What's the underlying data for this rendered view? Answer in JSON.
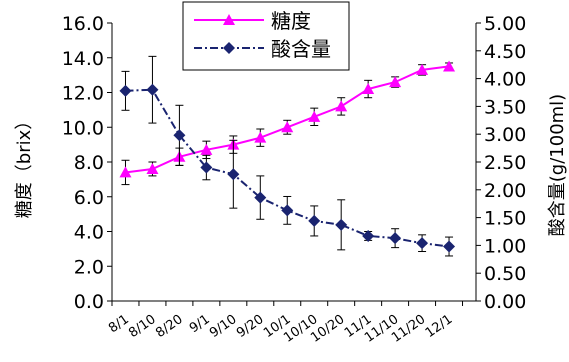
{
  "chart_data": {
    "type": "line",
    "categories": [
      "8/1",
      "8/10",
      "8/20",
      "9/1",
      "9/10",
      "9/20",
      "10/1",
      "10/10",
      "10/20",
      "11/1",
      "11/10",
      "11/20",
      "12/1"
    ],
    "y_left": {
      "label": "糖度（brix）",
      "range": [
        0,
        16
      ],
      "ticks": [
        "0.0",
        "2.0",
        "4.0",
        "6.0",
        "8.0",
        "10.0",
        "12.0",
        "14.0",
        "16.0"
      ]
    },
    "y_right": {
      "label": "酸含量(g/100ml)",
      "range": [
        0,
        5
      ],
      "ticks": [
        "0.00",
        "0.50",
        "1.00",
        "1.50",
        "2.00",
        "2.50",
        "3.00",
        "3.50",
        "4.00",
        "4.50",
        "5.00"
      ]
    },
    "legend_position": "top-center",
    "grid": false,
    "series": [
      {
        "name": "糖度",
        "axis": "left",
        "color": "#ff00ff",
        "marker": "triangle",
        "line": "solid",
        "values": [
          7.4,
          7.6,
          8.3,
          8.7,
          9.0,
          9.4,
          10.0,
          10.6,
          11.2,
          12.2,
          12.6,
          13.3,
          13.5
        ],
        "error": [
          0.7,
          0.4,
          0.5,
          0.5,
          0.5,
          0.5,
          0.4,
          0.5,
          0.5,
          0.5,
          0.3,
          0.3,
          0.2
        ]
      },
      {
        "name": "酸含量",
        "axis": "right",
        "color": "#1a2470",
        "marker": "diamond",
        "line": "dashdot",
        "values": [
          3.78,
          3.8,
          2.98,
          2.4,
          2.28,
          1.86,
          1.63,
          1.44,
          1.37,
          1.17,
          1.13,
          1.04,
          0.98
        ],
        "error": [
          0.35,
          0.6,
          0.54,
          0.22,
          0.61,
          0.39,
          0.25,
          0.27,
          0.45,
          0.08,
          0.17,
          0.15,
          0.17
        ]
      }
    ]
  }
}
